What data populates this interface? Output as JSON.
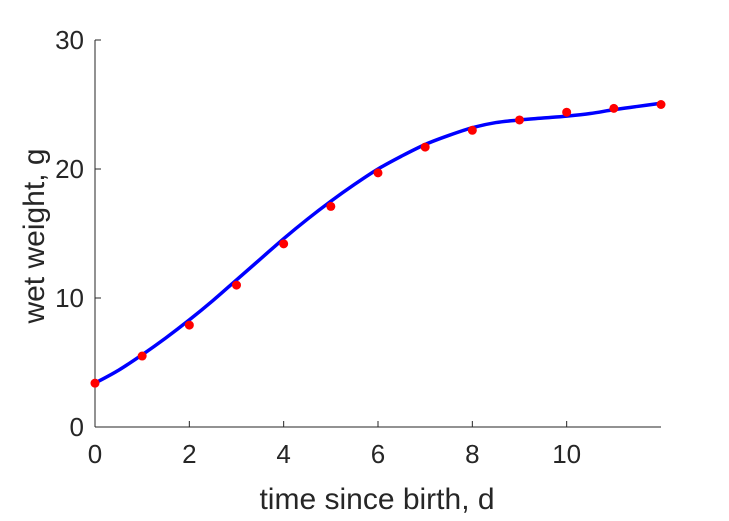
{
  "chart_data": {
    "type": "line",
    "title": "",
    "xlabel": "time since birth, d",
    "ylabel": "wet weight, g",
    "xlim": [
      0,
      12
    ],
    "ylim": [
      0,
      30
    ],
    "x_ticks": [
      0,
      2,
      4,
      6,
      8,
      10
    ],
    "y_ticks": [
      0,
      10,
      20,
      30
    ],
    "grid": false,
    "series": [
      {
        "kind": "scatter",
        "color": "#ff0000",
        "x": [
          0,
          1,
          2,
          3,
          4,
          5,
          6,
          7,
          8,
          9,
          10,
          11,
          12
        ],
        "y": [
          3.4,
          5.5,
          7.9,
          11.0,
          14.2,
          17.1,
          19.7,
          21.7,
          23.0,
          23.8,
          24.4,
          24.7,
          25.0
        ]
      },
      {
        "kind": "line",
        "color": "#0000ff",
        "x": [
          0,
          0.5,
          1,
          1.5,
          2,
          2.5,
          3,
          3.5,
          4,
          4.5,
          5,
          5.5,
          6,
          6.5,
          7,
          7.5,
          8,
          8.5,
          9,
          9.5,
          10,
          10.5,
          11,
          11.5,
          12
        ],
        "y": [
          3.4,
          4.4,
          5.6,
          6.9,
          8.3,
          9.8,
          11.4,
          13.0,
          14.6,
          16.1,
          17.5,
          18.8,
          20.0,
          21.0,
          21.9,
          22.6,
          23.2,
          23.6,
          23.8,
          23.95,
          24.1,
          24.3,
          24.6,
          24.85,
          25.1
        ]
      }
    ]
  }
}
